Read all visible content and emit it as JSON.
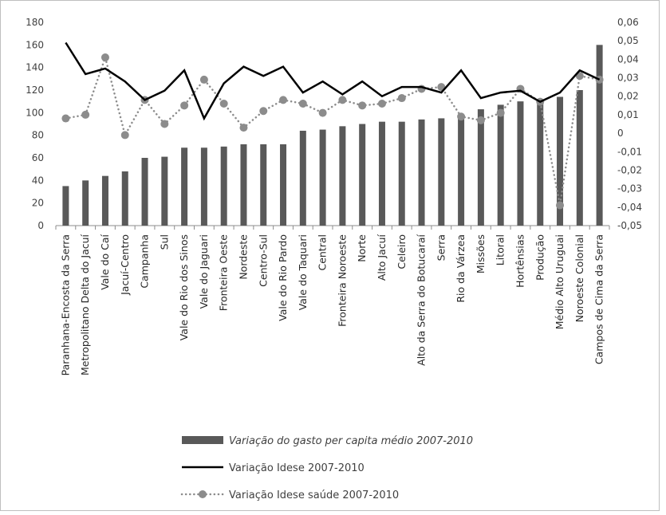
{
  "chart_data": {
    "type": "bar",
    "categories": [
      "Paranhana-Encosta da Serra",
      "Metropolitano Delta do Jacuí",
      "Vale do Caí",
      "Jacuí-Centro",
      "Campanha",
      "Sul",
      "Vale do Rio dos Sinos",
      "Vale do Jaguari",
      "Fronteira Oeste",
      "Nordeste",
      "Centro-Sul",
      "Vale do Rio Pardo",
      "Vale do Taquari",
      "Central",
      "Fronteira Noroeste",
      "Norte",
      "Alto Jacuí",
      "Celeiro",
      "Alto da Serra do Botucaraí",
      "Serra",
      "Rio da Várzea",
      "Missões",
      "Litoral",
      "Hortênsias",
      "Produção",
      "Médio Alto Uruguai",
      "Noroeste Colonial",
      "Campos de Cima da Serra"
    ],
    "series": [
      {
        "name": "Variação do gasto per capita médio 2007-2010",
        "type": "bar",
        "axis": "left",
        "color": "#595959",
        "values": [
          35,
          40,
          44,
          48,
          60,
          61,
          69,
          69,
          70,
          72,
          72,
          72,
          84,
          85,
          88,
          90,
          92,
          92,
          94,
          95,
          97,
          103,
          107,
          110,
          111,
          114,
          120,
          160
        ]
      },
      {
        "name": "Variação Idese 2007-2010",
        "type": "line",
        "axis": "right",
        "color": "#000000",
        "values": [
          0.049,
          0.032,
          0.035,
          0.028,
          0.018,
          0.023,
          0.034,
          0.008,
          0.027,
          0.036,
          0.031,
          0.036,
          0.022,
          0.028,
          0.021,
          0.028,
          0.02,
          0.025,
          0.025,
          0.022,
          0.034,
          0.019,
          0.022,
          0.023,
          0.017,
          0.022,
          0.034,
          0.029
        ]
      },
      {
        "name": "Variação Idese saúde 2007-2010",
        "type": "line-dotted-markers",
        "axis": "right",
        "color": "#8c8c8c",
        "values": [
          0.008,
          0.01,
          0.041,
          -0.001,
          0.018,
          0.005,
          0.015,
          0.029,
          0.016,
          0.003,
          0.012,
          0.018,
          0.016,
          0.011,
          0.018,
          0.015,
          0.016,
          0.019,
          0.024,
          0.025,
          0.009,
          0.007,
          0.011,
          0.024,
          0.017,
          -0.039,
          0.031,
          0.029
        ]
      }
    ],
    "y_left": {
      "range": [
        0,
        180
      ],
      "ticks": [
        0,
        20,
        40,
        60,
        80,
        100,
        120,
        140,
        160,
        180
      ],
      "tick_labels": [
        "0",
        "20",
        "40",
        "60",
        "80",
        "100",
        "120",
        "140",
        "160",
        "180"
      ]
    },
    "y_right": {
      "range": [
        -0.05,
        0.06
      ],
      "ticks": [
        -0.05,
        -0.04,
        -0.03,
        -0.02,
        -0.01,
        0,
        0.01,
        0.02,
        0.03,
        0.04,
        0.05,
        0.06
      ],
      "tick_labels": [
        "-0,05",
        "-0,04",
        "-0,03",
        "-0,02",
        "-0,01",
        "0",
        "0,01",
        "0,02",
        "0,03",
        "0,04",
        "0,05",
        "0,06"
      ]
    },
    "grid": false,
    "legend_position": "bottom",
    "legend": [
      {
        "label": "Variação do gasto per capita médio 2007-2010",
        "style": "bar",
        "italic": true
      },
      {
        "label": "Variação Idese 2007-2010",
        "style": "line",
        "italic": false
      },
      {
        "label": "Variação Idese saúde 2007-2010",
        "style": "dotted-marker",
        "italic": false
      }
    ]
  }
}
